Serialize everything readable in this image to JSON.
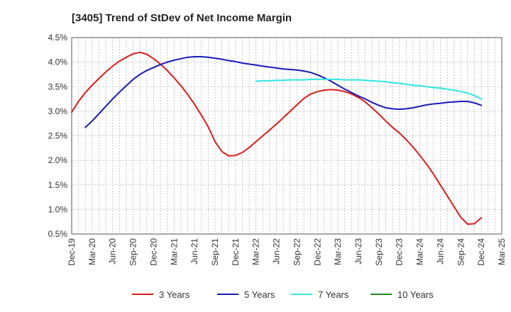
{
  "chart_data": {
    "type": "line",
    "title": "[3405]  Trend of StDev of Net Income Margin",
    "xlabel": "",
    "ylabel": "",
    "x_ticks": [
      "Dec-19",
      "Mar-20",
      "Jun-20",
      "Sep-20",
      "Dec-20",
      "Mar-21",
      "Jun-21",
      "Sep-21",
      "Dec-21",
      "Mar-22",
      "Jun-22",
      "Sep-22",
      "Dec-22",
      "Mar-23",
      "Jun-23",
      "Sep-23",
      "Dec-23",
      "Mar-24",
      "Jun-24",
      "Sep-24",
      "Dec-24",
      "Mar-25"
    ],
    "y_ticks": [
      "0.5%",
      "1.0%",
      "1.5%",
      "2.0%",
      "2.5%",
      "3.0%",
      "3.5%",
      "4.0%",
      "4.5%"
    ],
    "ylim": [
      0.5,
      4.5
    ],
    "grid": true,
    "legend_position": "bottom",
    "series": [
      {
        "name": "3 Years",
        "color": "#dd1c1c",
        "x": [
          "Dec-19",
          "Jan-20",
          "Feb-20",
          "Mar-20",
          "Apr-20",
          "May-20",
          "Jun-20",
          "Jul-20",
          "Aug-20",
          "Sep-20",
          "Oct-20",
          "Nov-20",
          "Dec-20",
          "Jan-21",
          "Feb-21",
          "Mar-21",
          "Apr-21",
          "May-21",
          "Jun-21",
          "Jul-21",
          "Aug-21",
          "Sep-21",
          "Oct-21",
          "Nov-21",
          "Dec-21",
          "Jan-22",
          "Feb-22",
          "Mar-22",
          "Apr-22",
          "May-22",
          "Jun-22",
          "Jul-22",
          "Aug-22",
          "Sep-22",
          "Oct-22",
          "Nov-22",
          "Dec-22",
          "Jan-23",
          "Feb-23",
          "Mar-23",
          "Apr-23",
          "May-23",
          "Jun-23",
          "Jul-23",
          "Aug-23",
          "Sep-23",
          "Oct-23",
          "Nov-23",
          "Dec-23",
          "Jan-24",
          "Feb-24",
          "Mar-24",
          "Apr-24",
          "May-24",
          "Jun-24",
          "Jul-24",
          "Aug-24",
          "Sep-24",
          "Oct-24",
          "Nov-24",
          "Dec-24"
        ],
        "values": [
          2.98,
          3.2,
          3.38,
          3.53,
          3.67,
          3.8,
          3.92,
          4.02,
          4.1,
          4.17,
          4.2,
          4.16,
          4.07,
          3.96,
          3.83,
          3.68,
          3.52,
          3.34,
          3.14,
          2.92,
          2.68,
          2.38,
          2.18,
          2.09,
          2.1,
          2.16,
          2.26,
          2.38,
          2.5,
          2.62,
          2.74,
          2.87,
          3.0,
          3.13,
          3.26,
          3.35,
          3.4,
          3.43,
          3.44,
          3.43,
          3.4,
          3.35,
          3.28,
          3.19,
          3.07,
          2.94,
          2.8,
          2.67,
          2.56,
          2.42,
          2.27,
          2.1,
          1.92,
          1.72,
          1.5,
          1.28,
          1.06,
          0.84,
          0.7,
          0.71,
          0.83
        ]
      },
      {
        "name": "5 Years",
        "color": "#1a1ab8",
        "x": [
          "Dec-19",
          "Jan-20",
          "Feb-20",
          "Mar-20",
          "Apr-20",
          "May-20",
          "Jun-20",
          "Jul-20",
          "Aug-20",
          "Sep-20",
          "Oct-20",
          "Nov-20",
          "Dec-20",
          "Jan-21",
          "Feb-21",
          "Mar-21",
          "Apr-21",
          "May-21",
          "Jun-21",
          "Jul-21",
          "Aug-21",
          "Sep-21",
          "Oct-21",
          "Nov-21",
          "Dec-21",
          "Jan-22",
          "Feb-22",
          "Mar-22",
          "Apr-22",
          "May-22",
          "Jun-22",
          "Jul-22",
          "Aug-22",
          "Sep-22",
          "Oct-22",
          "Nov-22",
          "Dec-22",
          "Jan-23",
          "Feb-23",
          "Mar-23",
          "Apr-23",
          "May-23",
          "Jun-23",
          "Jul-23",
          "Aug-23",
          "Sep-23",
          "Oct-23",
          "Nov-23",
          "Dec-23",
          "Jan-24",
          "Feb-24",
          "Mar-24",
          "Apr-24",
          "May-24",
          "Jun-24",
          "Jul-24",
          "Aug-24",
          "Sep-24",
          "Oct-24",
          "Nov-24",
          "Dec-24"
        ],
        "values": [
          null,
          null,
          2.67,
          2.8,
          2.95,
          3.1,
          3.25,
          3.39,
          3.52,
          3.65,
          3.75,
          3.83,
          3.89,
          3.95,
          4.0,
          4.04,
          4.07,
          4.1,
          4.11,
          4.11,
          4.1,
          4.08,
          4.06,
          4.03,
          4.01,
          3.98,
          3.96,
          3.94,
          3.92,
          3.9,
          3.88,
          3.86,
          3.85,
          3.84,
          3.82,
          3.79,
          3.74,
          3.68,
          3.61,
          3.53,
          3.45,
          3.38,
          3.31,
          3.25,
          3.18,
          3.12,
          3.07,
          3.05,
          3.04,
          3.05,
          3.07,
          3.1,
          3.13,
          3.15,
          3.16,
          3.18,
          3.19,
          3.2,
          3.2,
          3.17,
          3.12
        ]
      },
      {
        "name": "7 Years",
        "color": "#2ee6e6",
        "x": [
          "Mar-22",
          "Apr-22",
          "May-22",
          "Jun-22",
          "Jul-22",
          "Aug-22",
          "Sep-22",
          "Oct-22",
          "Nov-22",
          "Dec-22",
          "Jan-23",
          "Feb-23",
          "Mar-23",
          "Apr-23",
          "May-23",
          "Jun-23",
          "Jul-23",
          "Aug-23",
          "Sep-23",
          "Oct-23",
          "Nov-23",
          "Dec-23",
          "Jan-24",
          "Feb-24",
          "Mar-24",
          "Apr-24",
          "May-24",
          "Jun-24",
          "Jul-24",
          "Aug-24",
          "Sep-24",
          "Oct-24",
          "Nov-24",
          "Dec-24"
        ],
        "values": [
          3.61,
          3.62,
          3.62,
          3.63,
          3.63,
          3.64,
          3.64,
          3.64,
          3.65,
          3.65,
          3.65,
          3.65,
          3.65,
          3.64,
          3.64,
          3.64,
          3.63,
          3.62,
          3.61,
          3.6,
          3.58,
          3.57,
          3.55,
          3.53,
          3.52,
          3.5,
          3.48,
          3.47,
          3.45,
          3.43,
          3.4,
          3.37,
          3.32,
          3.25
        ]
      },
      {
        "name": "10 Years",
        "color": "#1f8c1f",
        "x": [],
        "values": []
      }
    ]
  }
}
